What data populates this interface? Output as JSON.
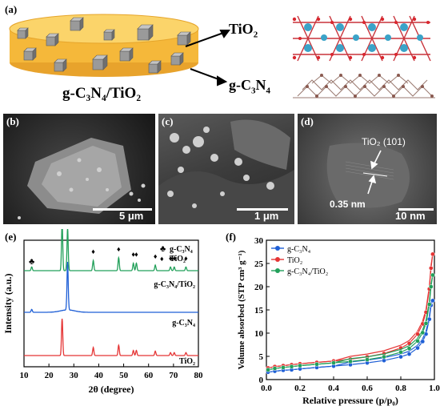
{
  "panel_a": {
    "label": "(a)",
    "tio2_label": "TiO",
    "tio2_sub": "2",
    "gcn_label": "g-C",
    "gcn_sub": "3",
    "gcn_n": "N",
    "gcn_nsub": "4",
    "composite_label": "g-C₃N₄/TiO₂"
  },
  "panel_b": {
    "label": "(b)",
    "scale": "5 μm"
  },
  "panel_c": {
    "label": "(c)",
    "scale": "1 μm"
  },
  "panel_d": {
    "label": "(d)",
    "scale": "10 nm",
    "plane": "TiO₂ (101)",
    "spacing": "0.35 nm"
  },
  "panel_e": {
    "label": "(e)"
  },
  "panel_f": {
    "label": "(f)"
  },
  "colors": {
    "gcn": "#1f5fd6",
    "tio2": "#e53535",
    "composite": "#22a05a",
    "disk": "#f5b83a"
  },
  "chart_data": [
    {
      "type": "line",
      "panel": "e",
      "xlabel": "2θ (degree)",
      "ylabel": "Intensity (a.u.)",
      "xlim": [
        10,
        80
      ],
      "xticks": [
        10,
        20,
        30,
        40,
        50,
        60,
        70,
        80
      ],
      "legend": [
        "g-C₃N₄",
        "TiO₂"
      ],
      "series": [
        {
          "name": "g-C₃N₄/TiO₂",
          "color": "#22a05a",
          "peaks": [
            [
              13.1,
              0.08
            ],
            [
              25.3,
              1.0
            ],
            [
              27.5,
              0.92
            ],
            [
              37.8,
              0.22
            ],
            [
              48.0,
              0.28
            ],
            [
              53.9,
              0.16
            ],
            [
              55.1,
              0.16
            ],
            [
              62.7,
              0.12
            ],
            [
              68.8,
              0.08
            ],
            [
              70.3,
              0.08
            ],
            [
              75.0,
              0.08
            ]
          ]
        },
        {
          "name": "g-C₃N₄",
          "color": "#1f5fd6",
          "peaks": [
            [
              13.1,
              0.06
            ],
            [
              27.5,
              1.0
            ]
          ]
        },
        {
          "name": "TiO₂",
          "color": "#e53535",
          "peaks": [
            [
              25.3,
              1.0
            ],
            [
              37.8,
              0.22
            ],
            [
              48.0,
              0.28
            ],
            [
              53.9,
              0.14
            ],
            [
              55.1,
              0.14
            ],
            [
              62.7,
              0.12
            ],
            [
              68.8,
              0.08
            ],
            [
              70.3,
              0.08
            ],
            [
              75.0,
              0.08
            ]
          ]
        }
      ],
      "markers": {
        "club": [
          13.1,
          27.5
        ],
        "diamond": [
          25.3,
          37.8,
          48.0,
          53.9,
          55.1,
          62.7,
          68.8,
          70.3,
          75.0
        ]
      }
    },
    {
      "type": "line",
      "panel": "f",
      "xlabel": "Relative pressure (p/p₀)",
      "ylabel": "Volume absorbed (STP cm³ g⁻¹)",
      "xlim": [
        0.0,
        1.0
      ],
      "ylim": [
        0,
        30
      ],
      "xticks": [
        0.0,
        0.2,
        0.4,
        0.6,
        0.8,
        1.0
      ],
      "yticks": [
        0,
        5,
        10,
        15,
        20,
        25,
        30
      ],
      "series": [
        {
          "name": "g-C₃N₄",
          "color": "#1f5fd6",
          "x": [
            0.01,
            0.05,
            0.1,
            0.15,
            0.2,
            0.3,
            0.4,
            0.5,
            0.6,
            0.7,
            0.8,
            0.85,
            0.9,
            0.93,
            0.95,
            0.97,
            0.98,
            0.99
          ],
          "y": [
            1.6,
            1.8,
            2.0,
            2.1,
            2.3,
            2.6,
            2.9,
            3.2,
            3.6,
            4.1,
            4.9,
            5.5,
            6.8,
            8.2,
            9.8,
            13.0,
            16.0,
            17.0
          ]
        },
        {
          "name": "TiO₂",
          "color": "#e53535",
          "x": [
            0.01,
            0.05,
            0.1,
            0.15,
            0.2,
            0.3,
            0.4,
            0.5,
            0.6,
            0.7,
            0.8,
            0.85,
            0.9,
            0.93,
            0.95,
            0.97,
            0.98,
            0.99
          ],
          "y": [
            2.5,
            2.8,
            3.0,
            3.2,
            3.4,
            3.7,
            4.0,
            4.4,
            4.9,
            5.6,
            6.8,
            7.8,
            9.8,
            12.0,
            14.5,
            19.5,
            24.0,
            27.0
          ]
        },
        {
          "name": "g-C₃N₄/TiO₂",
          "color": "#22a05a",
          "x": [
            0.01,
            0.05,
            0.1,
            0.15,
            0.2,
            0.3,
            0.4,
            0.5,
            0.6,
            0.7,
            0.8,
            0.85,
            0.9,
            0.93,
            0.95,
            0.97,
            0.98,
            0.99
          ],
          "y": [
            2.1,
            2.4,
            2.6,
            2.8,
            3.0,
            3.3,
            3.6,
            3.9,
            4.3,
            4.9,
            5.9,
            6.7,
            8.3,
            10.1,
            12.1,
            16.2,
            20.0,
            22.5
          ]
        }
      ]
    }
  ]
}
